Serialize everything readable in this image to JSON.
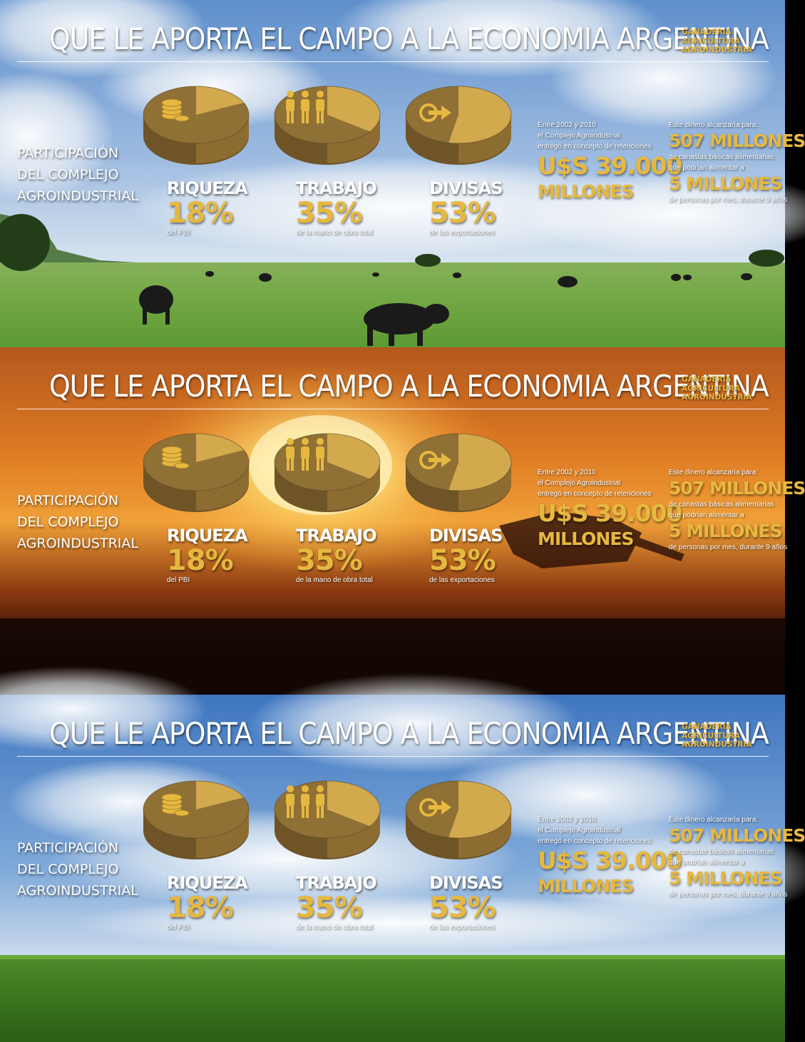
{
  "title": "QUE LE APORTA EL  CAMPO A LA ECONOMIA  ARGENTINA",
  "tagline": [
    "GANADERIA",
    "AGRICULTURA",
    "AGROINDUSTRIA"
  ],
  "participation": [
    "PARTICIPACIÓN",
    "DEL COMPLEJO",
    "AGROINDUSTRIAL"
  ],
  "retention": {
    "line1": "Entre 2002 y 2010",
    "line2": "el Complejo Agroindustrial",
    "line3": "entregó en concepto de retenciones",
    "amount": "U$S 39.000",
    "unit": "MILLONES"
  },
  "money": {
    "intro": "Este dinero alcanzaría para:",
    "baskets": "507 MILLONES",
    "desc1": "de canastas básicas alimentarias",
    "desc2": "que podrían alimentar a",
    "people": "5 MILLONES",
    "desc3": "de personas por mes, durante 9 años"
  },
  "colors": {
    "gold": "#e6b840",
    "pie_light": "#d3a94e",
    "pie_dark": "#8f7035"
  },
  "icons": [
    "coins-icon",
    "people-icon",
    "export-arrow-icon"
  ],
  "chart_data": {
    "type": "pie",
    "title": "PARTICIPACIÓN DEL COMPLEJO AGROINDUSTRIAL",
    "categories": [
      "RIQUEZA",
      "TRABAJO",
      "DIVISAS"
    ],
    "values": [
      18,
      35,
      53
    ],
    "unit": "%",
    "labels": [
      "18%",
      "35%",
      "53%"
    ],
    "notes": [
      "del PBI",
      "de la mano de obra total",
      "de las exportaciones"
    ]
  }
}
